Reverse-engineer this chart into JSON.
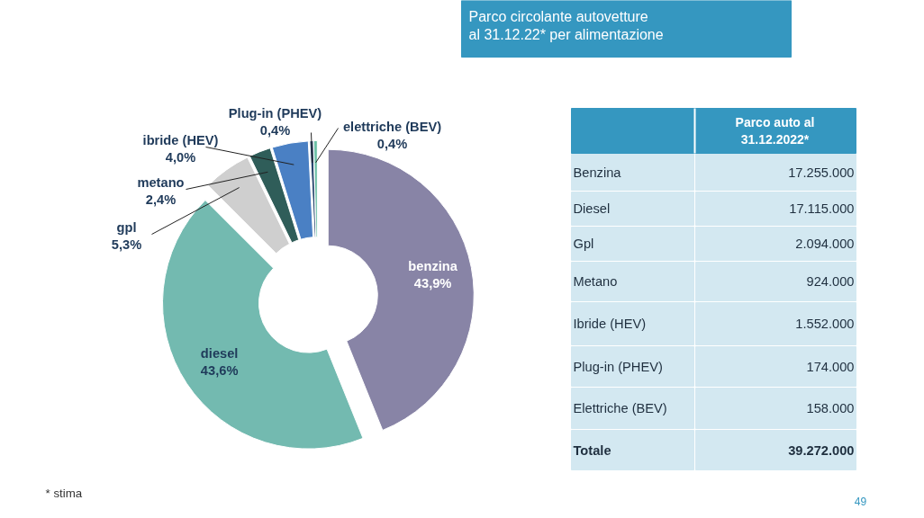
{
  "chart_data": [
    {
      "type": "donut",
      "title": "Parco circolante autovetture\nal 31.12.22* per alimentazione",
      "categories": [
        "benzina",
        "diesel",
        "gpl",
        "metano",
        "ibride (HEV)",
        "Plug-in (PHEV)",
        "elettriche (BEV)"
      ],
      "values": [
        43.9,
        43.6,
        5.3,
        2.4,
        4.0,
        0.4,
        0.4
      ],
      "value_labels": [
        "43,9%",
        "43,6%",
        "5,3%",
        "2,4%",
        "4,0%",
        "0,4%",
        "0,4%"
      ],
      "colors": [
        "#8884a6",
        "#73bab0",
        "#cfcfcf",
        "#2f5d59",
        "#4a80c4",
        "#27456e",
        "#6cc0a6"
      ],
      "annotations": [
        "* stima",
        "49"
      ]
    },
    {
      "type": "other",
      "title": "Parco auto al\n31.12.2022*",
      "categories": [
        "Benzina",
        "Diesel",
        "Gpl",
        "Metano",
        "Ibride (HEV)",
        "Plug-in (PHEV)",
        "Elettriche (BEV)",
        "Totale"
      ],
      "value_labels": [
        "17.255.000",
        "17.115.000",
        "2.094.000",
        "924.000",
        "1.552.000",
        "174.000",
        "158.000",
        "39.272.000"
      ]
    }
  ]
}
